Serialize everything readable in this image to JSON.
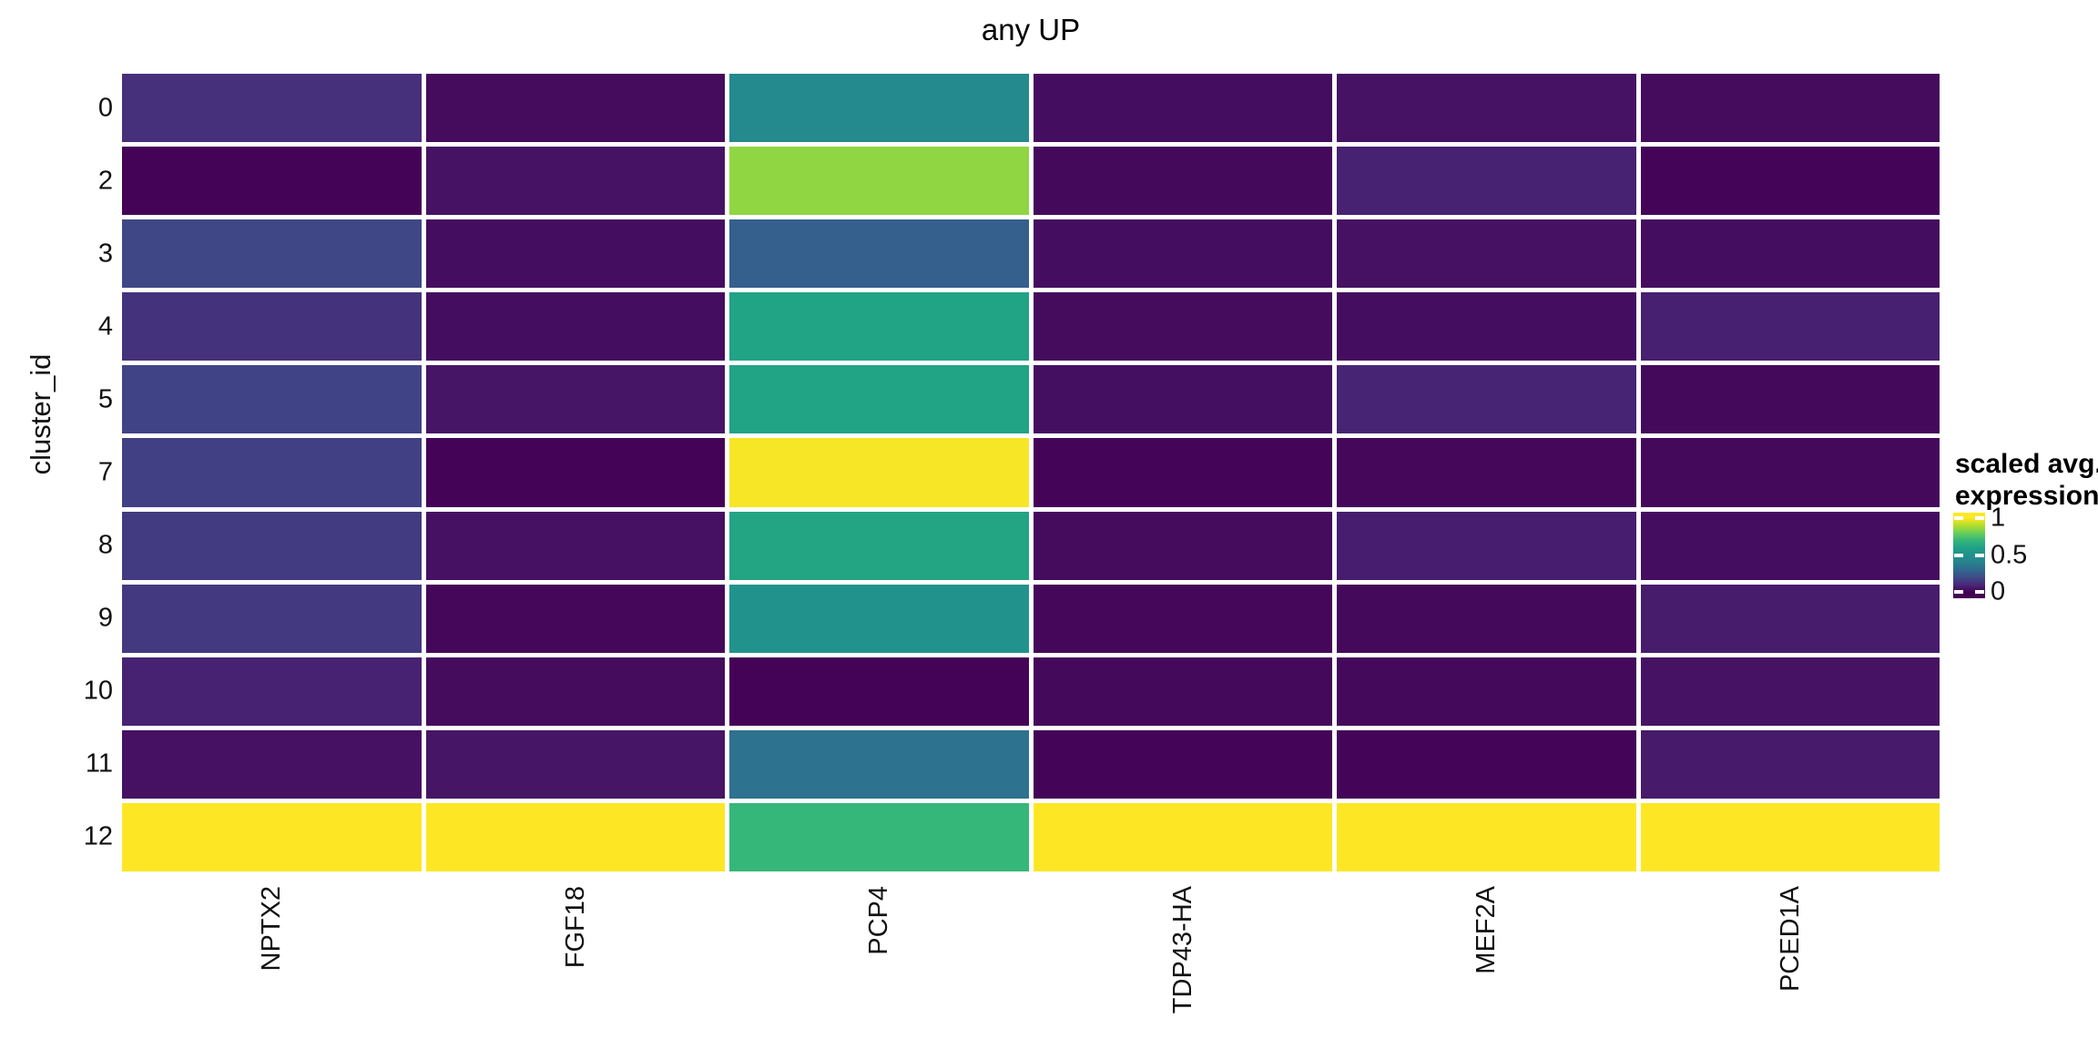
{
  "title": "any UP",
  "y_axis": {
    "title": "cluster_id"
  },
  "legend": {
    "title_lines": [
      "scaled avg.",
      "expression"
    ],
    "ticks": [
      {
        "label": "1",
        "value": 1
      },
      {
        "label": "0.5",
        "value": 0.5
      },
      {
        "label": "0",
        "value": 0
      }
    ]
  },
  "colors": {
    "background": "#ffffff",
    "tile_gap": "#ffffff",
    "text": "#111111",
    "viridis_stops": [
      "#440154",
      "#482878",
      "#3e4a89",
      "#31688e",
      "#26828e",
      "#21918c",
      "#1fa187",
      "#35b779",
      "#6cce59",
      "#b4de2c",
      "#fde725"
    ]
  },
  "chart_data": {
    "type": "heatmap",
    "title": "any UP",
    "y_axis_label": "cluster_id",
    "legend_label": "scaled avg. expression",
    "colormap": "viridis",
    "value_range": [
      0,
      1
    ],
    "x_categories": [
      "NPTX2",
      "FGF18",
      "PCP4",
      "TDP43-HA",
      "MEF2A",
      "PCED1A"
    ],
    "y_categories": [
      "0",
      "2",
      "3",
      "4",
      "5",
      "7",
      "8",
      "9",
      "10",
      "11",
      "12"
    ],
    "values_rows_x_cols": [
      [
        0.12,
        0.025,
        0.45,
        0.03,
        0.045,
        0.025
      ],
      [
        0.005,
        0.045,
        0.85,
        0.02,
        0.085,
        0.01
      ],
      [
        0.19,
        0.03,
        0.27,
        0.03,
        0.04,
        0.03
      ],
      [
        0.13,
        0.03,
        0.61,
        0.025,
        0.03,
        0.08
      ],
      [
        0.18,
        0.05,
        0.61,
        0.035,
        0.09,
        0.02
      ],
      [
        0.17,
        0.005,
        0.99,
        0.01,
        0.015,
        0.02
      ],
      [
        0.155,
        0.04,
        0.62,
        0.025,
        0.075,
        0.03
      ],
      [
        0.15,
        0.015,
        0.51,
        0.015,
        0.02,
        0.07
      ],
      [
        0.085,
        0.025,
        0.005,
        0.02,
        0.02,
        0.045
      ],
      [
        0.04,
        0.05,
        0.34,
        0.01,
        0.01,
        0.065
      ],
      [
        1.0,
        1.0,
        0.7,
        1.0,
        1.0,
        1.0
      ]
    ]
  }
}
